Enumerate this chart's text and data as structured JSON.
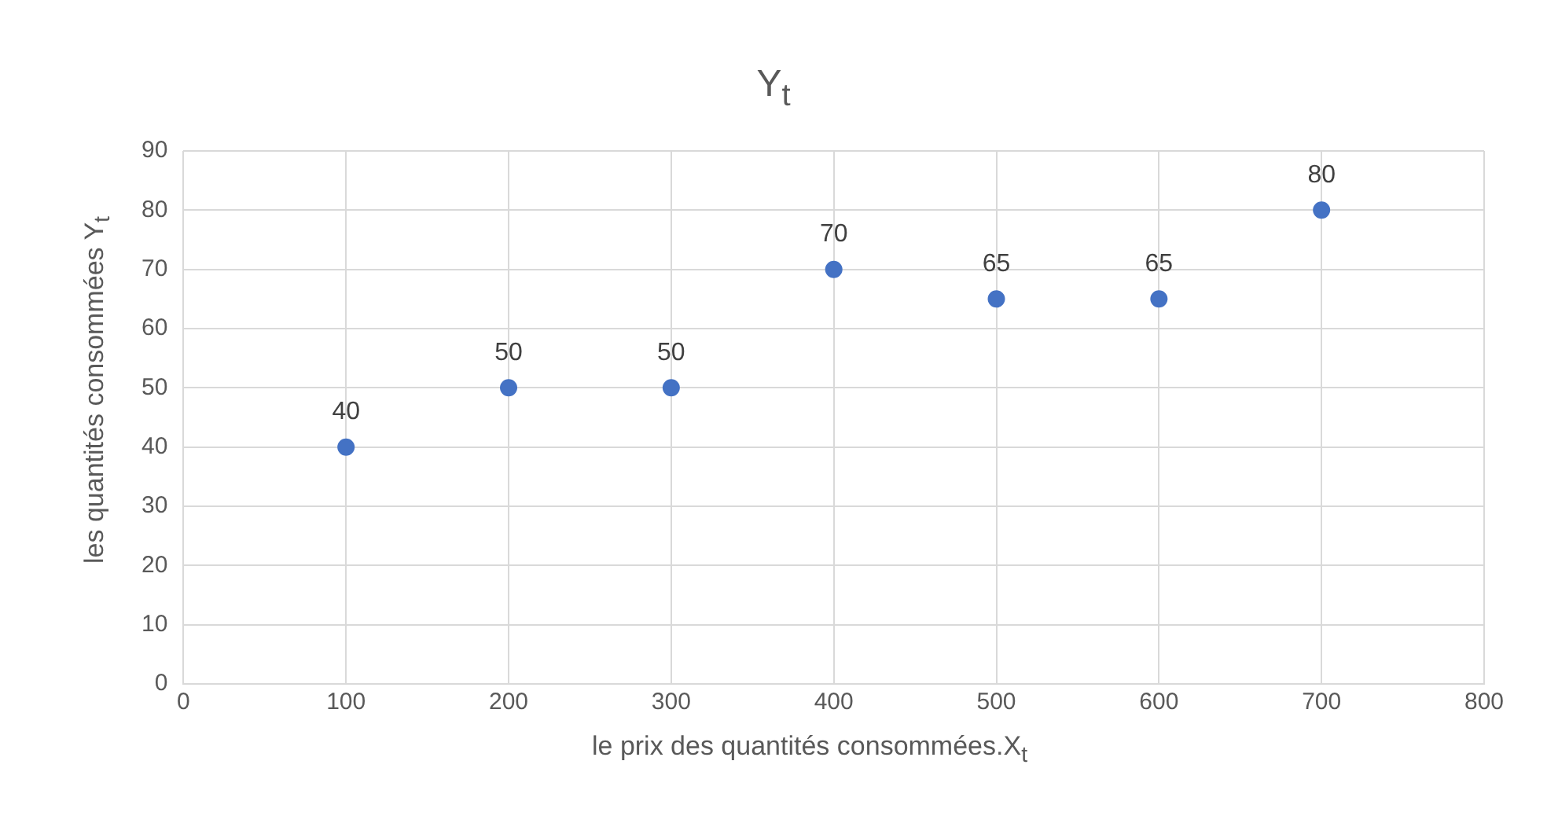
{
  "chart_data": {
    "type": "scatter",
    "title": "Y$_{t}$",
    "xlabel": "le prix des quantités consommées.X$_{t}$",
    "ylabel": "les quantités consommées Y$_{t}$",
    "x": [
      100,
      200,
      300,
      400,
      500,
      600,
      700
    ],
    "series": [
      {
        "color": "#4472c4",
        "values": [
          40,
          50,
          50,
          70,
          65,
          65,
          80
        ]
      }
    ],
    "xlim": [
      0,
      800
    ],
    "xticks": [
      0,
      100,
      200,
      300,
      400,
      500,
      600,
      700,
      800
    ],
    "ylim": [
      0,
      90
    ],
    "yticks": [
      0,
      10,
      20,
      30,
      40,
      50,
      60,
      70,
      80,
      90
    ],
    "grid": true,
    "marker": "circle",
    "data_labels": true
  }
}
